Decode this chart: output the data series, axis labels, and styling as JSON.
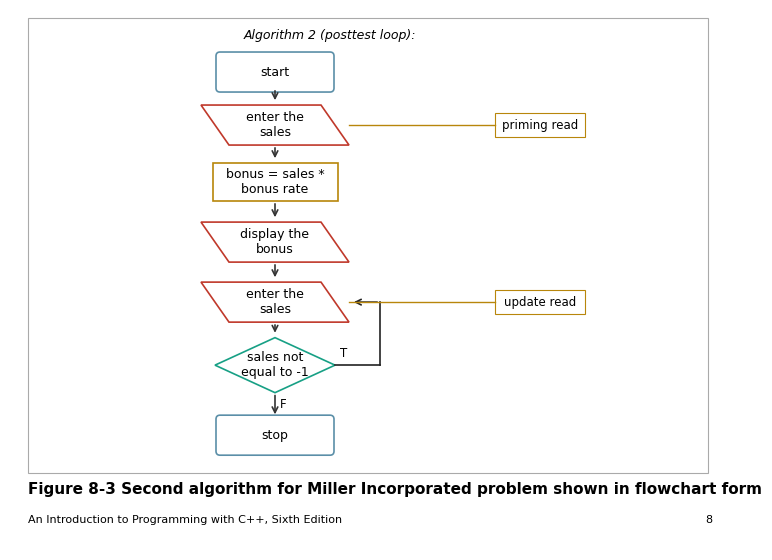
{
  "title": "Algorithm 2 (posttest loop):",
  "caption": "Figure 8-3 Second algorithm for Miller Incorporated problem shown in flowchart form",
  "subcaption": "An Introduction to Programming with C++, Sixth Edition",
  "page_num": "8",
  "bg_color": "#ffffff",
  "border_lw": 0.8,
  "border_color": "#aaaaaa",
  "shapes_ec": {
    "rounded": "#5b8fa8",
    "para": "#c0392b",
    "rect": "#b8860b",
    "diamond": "#17a085"
  },
  "anno_ec": "#b8860b",
  "loop_color": "#222222",
  "anno_line_color": "#b8860b",
  "arrow_color": "#333333",
  "title_fontsize": 9,
  "shape_fontsize": 8.5,
  "caption_fontsize": 11,
  "subcap_fontsize": 8
}
